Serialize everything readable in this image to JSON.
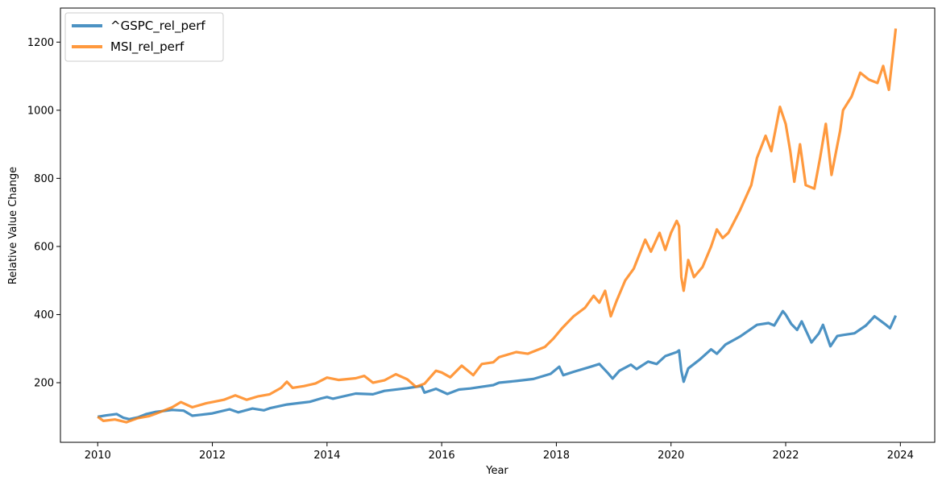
{
  "chart_data": {
    "type": "line",
    "title": "",
    "xlabel": "Year",
    "ylabel": "Relative Value Change",
    "xlim": [
      2009.35,
      2024.6
    ],
    "ylim": [
      25,
      1300
    ],
    "x_ticks": [
      2010,
      2012,
      2014,
      2016,
      2018,
      2020,
      2022,
      2024
    ],
    "x_tick_labels": [
      "2010",
      "2012",
      "2014",
      "2016",
      "2018",
      "2020",
      "2022",
      "2024"
    ],
    "y_ticks": [
      200,
      400,
      600,
      800,
      1000,
      1200
    ],
    "y_tick_labels": [
      "200",
      "400",
      "600",
      "800",
      "1000",
      "1200"
    ],
    "grid": false,
    "legend_position": "top-left",
    "series": [
      {
        "name": "^GSPC_rel_perf",
        "color": "#1f77b4",
        "points": [
          [
            2010.0,
            100
          ],
          [
            2010.15,
            104
          ],
          [
            2010.33,
            108
          ],
          [
            2010.45,
            97
          ],
          [
            2010.55,
            93
          ],
          [
            2010.7,
            98
          ],
          [
            2010.85,
            108
          ],
          [
            2011.0,
            114
          ],
          [
            2011.3,
            120
          ],
          [
            2011.5,
            118
          ],
          [
            2011.65,
            103
          ],
          [
            2011.8,
            106
          ],
          [
            2012.0,
            110
          ],
          [
            2012.3,
            122
          ],
          [
            2012.45,
            113
          ],
          [
            2012.7,
            124
          ],
          [
            2012.9,
            119
          ],
          [
            2013.0,
            125
          ],
          [
            2013.3,
            136
          ],
          [
            2013.5,
            140
          ],
          [
            2013.7,
            144
          ],
          [
            2013.9,
            154
          ],
          [
            2014.0,
            158
          ],
          [
            2014.1,
            153
          ],
          [
            2014.5,
            168
          ],
          [
            2014.8,
            166
          ],
          [
            2015.0,
            176
          ],
          [
            2015.4,
            184
          ],
          [
            2015.65,
            190
          ],
          [
            2015.7,
            171
          ],
          [
            2015.9,
            182
          ],
          [
            2016.1,
            167
          ],
          [
            2016.3,
            180
          ],
          [
            2016.5,
            183
          ],
          [
            2016.7,
            188
          ],
          [
            2016.9,
            193
          ],
          [
            2017.0,
            200
          ],
          [
            2017.3,
            205
          ],
          [
            2017.6,
            211
          ],
          [
            2017.9,
            226
          ],
          [
            2018.05,
            247
          ],
          [
            2018.12,
            222
          ],
          [
            2018.3,
            232
          ],
          [
            2018.6,
            247
          ],
          [
            2018.75,
            255
          ],
          [
            2018.9,
            228
          ],
          [
            2018.98,
            212
          ],
          [
            2019.1,
            235
          ],
          [
            2019.3,
            253
          ],
          [
            2019.4,
            240
          ],
          [
            2019.6,
            262
          ],
          [
            2019.75,
            255
          ],
          [
            2019.9,
            278
          ],
          [
            2020.1,
            290
          ],
          [
            2020.14,
            295
          ],
          [
            2020.18,
            235
          ],
          [
            2020.22,
            203
          ],
          [
            2020.3,
            242
          ],
          [
            2020.5,
            268
          ],
          [
            2020.7,
            298
          ],
          [
            2020.8,
            285
          ],
          [
            2020.95,
            312
          ],
          [
            2021.2,
            335
          ],
          [
            2021.5,
            370
          ],
          [
            2021.7,
            375
          ],
          [
            2021.8,
            368
          ],
          [
            2021.95,
            410
          ],
          [
            2022.0,
            400
          ],
          [
            2022.1,
            372
          ],
          [
            2022.2,
            355
          ],
          [
            2022.28,
            380
          ],
          [
            2022.45,
            318
          ],
          [
            2022.58,
            345
          ],
          [
            2022.65,
            370
          ],
          [
            2022.78,
            307
          ],
          [
            2022.9,
            337
          ],
          [
            2023.0,
            340
          ],
          [
            2023.2,
            345
          ],
          [
            2023.4,
            368
          ],
          [
            2023.55,
            395
          ],
          [
            2023.75,
            370
          ],
          [
            2023.82,
            360
          ],
          [
            2023.92,
            397
          ]
        ]
      },
      {
        "name": "MSI_rel_perf",
        "color": "#ff7f0e",
        "points": [
          [
            2010.0,
            100
          ],
          [
            2010.1,
            88
          ],
          [
            2010.3,
            92
          ],
          [
            2010.5,
            84
          ],
          [
            2010.7,
            96
          ],
          [
            2010.9,
            102
          ],
          [
            2011.0,
            108
          ],
          [
            2011.3,
            128
          ],
          [
            2011.45,
            143
          ],
          [
            2011.65,
            128
          ],
          [
            2011.9,
            140
          ],
          [
            2012.0,
            143
          ],
          [
            2012.2,
            150
          ],
          [
            2012.4,
            163
          ],
          [
            2012.6,
            150
          ],
          [
            2012.8,
            160
          ],
          [
            2013.0,
            166
          ],
          [
            2013.2,
            185
          ],
          [
            2013.3,
            203
          ],
          [
            2013.4,
            185
          ],
          [
            2013.6,
            190
          ],
          [
            2013.8,
            198
          ],
          [
            2014.0,
            215
          ],
          [
            2014.2,
            208
          ],
          [
            2014.5,
            213
          ],
          [
            2014.65,
            220
          ],
          [
            2014.8,
            200
          ],
          [
            2015.0,
            207
          ],
          [
            2015.2,
            225
          ],
          [
            2015.4,
            210
          ],
          [
            2015.55,
            188
          ],
          [
            2015.7,
            197
          ],
          [
            2015.9,
            235
          ],
          [
            2016.0,
            230
          ],
          [
            2016.15,
            216
          ],
          [
            2016.35,
            250
          ],
          [
            2016.55,
            222
          ],
          [
            2016.7,
            255
          ],
          [
            2016.9,
            260
          ],
          [
            2017.0,
            275
          ],
          [
            2017.3,
            290
          ],
          [
            2017.5,
            285
          ],
          [
            2017.8,
            305
          ],
          [
            2017.95,
            330
          ],
          [
            2018.1,
            360
          ],
          [
            2018.3,
            395
          ],
          [
            2018.5,
            420
          ],
          [
            2018.65,
            455
          ],
          [
            2018.75,
            435
          ],
          [
            2018.85,
            470
          ],
          [
            2018.95,
            395
          ],
          [
            2019.05,
            440
          ],
          [
            2019.2,
            500
          ],
          [
            2019.35,
            535
          ],
          [
            2019.55,
            620
          ],
          [
            2019.65,
            585
          ],
          [
            2019.8,
            640
          ],
          [
            2019.9,
            590
          ],
          [
            2020.0,
            640
          ],
          [
            2020.1,
            675
          ],
          [
            2020.14,
            660
          ],
          [
            2020.18,
            510
          ],
          [
            2020.22,
            470
          ],
          [
            2020.3,
            560
          ],
          [
            2020.4,
            510
          ],
          [
            2020.55,
            540
          ],
          [
            2020.7,
            600
          ],
          [
            2020.8,
            650
          ],
          [
            2020.9,
            625
          ],
          [
            2021.0,
            640
          ],
          [
            2021.2,
            705
          ],
          [
            2021.4,
            780
          ],
          [
            2021.5,
            860
          ],
          [
            2021.65,
            925
          ],
          [
            2021.75,
            880
          ],
          [
            2021.9,
            1010
          ],
          [
            2022.0,
            960
          ],
          [
            2022.08,
            880
          ],
          [
            2022.15,
            790
          ],
          [
            2022.25,
            900
          ],
          [
            2022.35,
            780
          ],
          [
            2022.5,
            770
          ],
          [
            2022.6,
            860
          ],
          [
            2022.7,
            960
          ],
          [
            2022.8,
            810
          ],
          [
            2022.95,
            940
          ],
          [
            2023.0,
            1000
          ],
          [
            2023.15,
            1040
          ],
          [
            2023.3,
            1110
          ],
          [
            2023.45,
            1090
          ],
          [
            2023.6,
            1080
          ],
          [
            2023.7,
            1130
          ],
          [
            2023.8,
            1060
          ],
          [
            2023.88,
            1180
          ],
          [
            2023.92,
            1240
          ]
        ]
      }
    ]
  }
}
